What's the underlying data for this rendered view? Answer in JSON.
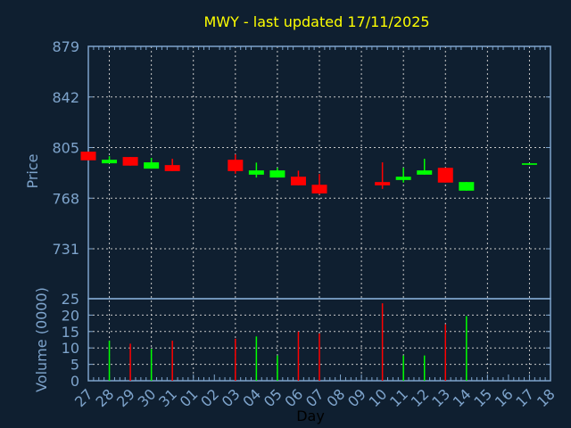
{
  "chart_data": {
    "type": "candlestick",
    "title": "MWY - last updated 17/11/2025",
    "xlabel": "Day",
    "x_ticks": [
      "27",
      "28",
      "29",
      "30",
      "31",
      "01",
      "02",
      "03",
      "04",
      "05",
      "06",
      "07",
      "08",
      "09",
      "10",
      "11",
      "12",
      "13",
      "14",
      "15",
      "16",
      "17",
      "18"
    ],
    "price_panel": {
      "ylabel": "Price",
      "ylim": [
        694.5,
        879
      ],
      "y_ticks": [
        879,
        842,
        805,
        768,
        731
      ],
      "grid": true,
      "candles": [
        {
          "day": "27",
          "open": 802.0,
          "high": 802.0,
          "low": 795.7,
          "close": 795.7
        },
        {
          "day": "28",
          "open": 793.5,
          "high": 798.7,
          "low": 793.5,
          "close": 796.1
        },
        {
          "day": "29",
          "open": 798.1,
          "high": 798.1,
          "low": 791.8,
          "close": 791.8
        },
        {
          "day": "30",
          "open": 789.6,
          "high": 797.4,
          "low": 789.6,
          "close": 794.2
        },
        {
          "day": "31",
          "open": 792.2,
          "high": 796.8,
          "low": 787.8,
          "close": 787.8
        },
        {
          "day": "03",
          "open": 796.1,
          "high": 800.0,
          "low": 785.9,
          "close": 787.8
        },
        {
          "day": "04",
          "open": 785.2,
          "high": 794.0,
          "low": 783.1,
          "close": 788.3
        },
        {
          "day": "05",
          "open": 783.1,
          "high": 790.2,
          "low": 783.1,
          "close": 788.3
        },
        {
          "day": "06",
          "open": 783.7,
          "high": 788.1,
          "low": 777.4,
          "close": 777.4
        },
        {
          "day": "07",
          "open": 777.8,
          "high": 785.7,
          "low": 770.9,
          "close": 771.5
        },
        {
          "day": "10",
          "open": 779.8,
          "high": 794.2,
          "low": 774.8,
          "close": 777.4
        },
        {
          "day": "11",
          "open": 781.3,
          "high": 790.2,
          "low": 779.4,
          "close": 783.7
        },
        {
          "day": "12",
          "open": 785.2,
          "high": 796.8,
          "low": 785.2,
          "close": 788.3
        },
        {
          "day": "13",
          "open": 790.2,
          "high": 790.2,
          "low": 779.4,
          "close": 779.4
        },
        {
          "day": "14",
          "open": 773.5,
          "high": 779.8,
          "low": 773.5,
          "close": 779.8
        },
        {
          "day": "17",
          "open": 792.4,
          "high": 793.5,
          "low": 792.4,
          "close": 793.5
        }
      ]
    },
    "volume_panel": {
      "ylabel": "Volume (0000)",
      "ylim": [
        0,
        25
      ],
      "y_ticks": [
        25,
        20,
        15,
        10,
        5,
        0
      ],
      "grid": true,
      "bars": [
        {
          "day": "28",
          "value": 12.2,
          "direction": "up"
        },
        {
          "day": "29",
          "value": 11.3,
          "direction": "down"
        },
        {
          "day": "30",
          "value": 9.7,
          "direction": "up"
        },
        {
          "day": "31",
          "value": 12.2,
          "direction": "down"
        },
        {
          "day": "03",
          "value": 12.8,
          "direction": "down"
        },
        {
          "day": "04",
          "value": 13.5,
          "direction": "up"
        },
        {
          "day": "05",
          "value": 7.7,
          "direction": "up"
        },
        {
          "day": "06",
          "value": 15.0,
          "direction": "down"
        },
        {
          "day": "07",
          "value": 14.4,
          "direction": "down"
        },
        {
          "day": "10",
          "value": 23.6,
          "direction": "down"
        },
        {
          "day": "11",
          "value": 7.7,
          "direction": "up"
        },
        {
          "day": "12",
          "value": 7.7,
          "direction": "up"
        },
        {
          "day": "13",
          "value": 17.2,
          "direction": "down"
        },
        {
          "day": "14",
          "value": 19.7,
          "direction": "up"
        }
      ]
    },
    "colors": {
      "background": "#0f1f30",
      "axis": "#7ea4cc",
      "grid": "#c8c8c8",
      "title": "#ffff00",
      "up": "#00ff00",
      "down": "#ff0000",
      "xlabel": "#000000"
    }
  }
}
